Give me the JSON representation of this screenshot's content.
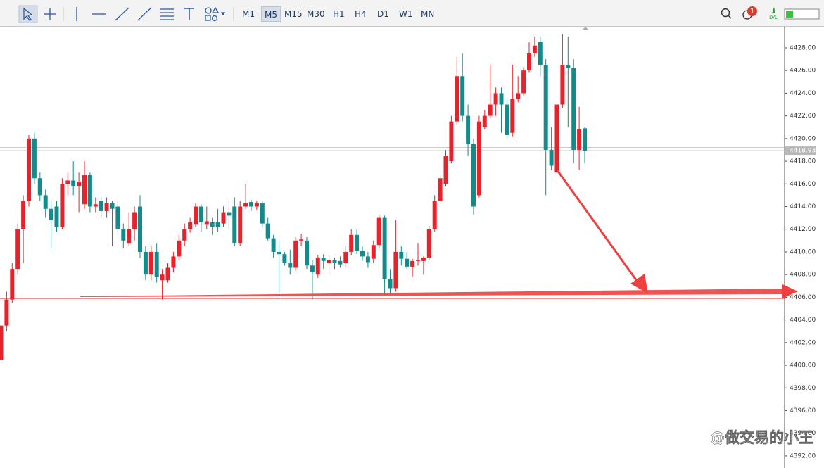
{
  "toolbar": {
    "timeframes": [
      "M1",
      "M5",
      "M15",
      "M30",
      "H1",
      "H4",
      "D1",
      "W1",
      "MN"
    ],
    "active_timeframe": "M5",
    "notification_count": "1",
    "level_label": "LVL"
  },
  "watermark": "@做交易的小王",
  "chart_data": {
    "type": "candlestick",
    "up_color": "#e8222b",
    "down_color": "#138b8b",
    "ylim": [
      4390.94,
      4429.86
    ],
    "yticks": [
      {
        "value": 4392,
        "label": "4392.00"
      },
      {
        "value": 4394,
        "label": "4394.00"
      },
      {
        "value": 4396,
        "label": "4396.00"
      },
      {
        "value": 4398,
        "label": "4398.00"
      },
      {
        "value": 4400,
        "label": "4400.00"
      },
      {
        "value": 4402,
        "label": "4402.00"
      },
      {
        "value": 4404,
        "label": "4404.00"
      },
      {
        "value": 4406,
        "label": "4406.00"
      },
      {
        "value": 4408,
        "label": "4408.00"
      },
      {
        "value": 4410,
        "label": "4410.00"
      },
      {
        "value": 4412,
        "label": "4412.00"
      },
      {
        "value": 4414,
        "label": "4414.00"
      },
      {
        "value": 4416,
        "label": "4416.00"
      },
      {
        "value": 4418,
        "label": "4418.00"
      },
      {
        "value": 4420,
        "label": "4420.00"
      },
      {
        "value": 4422,
        "label": "4422.00"
      },
      {
        "value": 4424,
        "label": "4424.00"
      },
      {
        "value": 4426,
        "label": "4426.00"
      },
      {
        "value": 4428,
        "label": "4428.00"
      }
    ],
    "last_price": {
      "value": 4418.93,
      "label": "4418.93"
    },
    "ask_price": 4419.2,
    "support_level": 4405.9,
    "ohlc": [
      [
        4400.5,
        4404,
        4400,
        4403.5
      ],
      [
        4403.5,
        4406.5,
        4403,
        4405.8
      ],
      [
        4405.8,
        4409,
        4405.5,
        4408.5
      ],
      [
        4408.5,
        4412.5,
        4408,
        4412
      ],
      [
        4412,
        4415,
        4409,
        4414.5
      ],
      [
        4414.5,
        4420.3,
        4414,
        4420
      ],
      [
        4420,
        4420.5,
        4416,
        4416.5
      ],
      [
        4416.5,
        4417,
        4414.5,
        4415
      ],
      [
        4415,
        4415.5,
        4413,
        4413.8
      ],
      [
        4413.8,
        4414.5,
        4410.3,
        4412.8
      ],
      [
        4414,
        4414.5,
        4411.8,
        4412.2
      ],
      [
        4412.2,
        4416.5,
        4412,
        4416
      ],
      [
        4416,
        4417,
        4415,
        4416.3
      ],
      [
        4416.3,
        4418,
        4415,
        4415.8
      ],
      [
        4415.8,
        4417,
        4413.5,
        4416.2
      ],
      [
        4414.2,
        4418,
        4413.8,
        4416.8
      ],
      [
        4416.8,
        4417,
        4413.5,
        4414
      ],
      [
        4414,
        4414.8,
        4413.5,
        4414.2
      ],
      [
        4414.5,
        4414.8,
        4413,
        4413.6
      ],
      [
        4413.6,
        4414.8,
        4413,
        4414.3
      ],
      [
        4414.3,
        4414.5,
        4410.5,
        4413.8
      ],
      [
        4414,
        4414.5,
        4411.5,
        4412
      ],
      [
        4412,
        4412.5,
        4410.3,
        4411
      ],
      [
        4410.8,
        4413.5,
        4410.5,
        4412
      ],
      [
        4412,
        4414,
        4411,
        4413.5
      ],
      [
        4414,
        4415,
        4409.5,
        4410
      ],
      [
        4410,
        4410.5,
        4407.5,
        4408
      ],
      [
        4408,
        4410.5,
        4407.5,
        4410
      ],
      [
        4410,
        4410.8,
        4407.3,
        4407.8
      ],
      [
        4407.5,
        4408.5,
        4405.8,
        4408
      ],
      [
        4407.5,
        4409,
        4407.3,
        4408.6
      ],
      [
        4408.6,
        4410,
        4408.2,
        4409.6
      ],
      [
        4409.6,
        4411.5,
        4409.3,
        4411
      ],
      [
        4411,
        4412.5,
        4410.5,
        4412
      ],
      [
        4412,
        4413,
        4411.7,
        4412.6
      ],
      [
        4412.4,
        4414.3,
        4412.2,
        4414
      ],
      [
        4414,
        4414.2,
        4411.8,
        4412.6
      ],
      [
        4412.4,
        4414,
        4412,
        4412.7
      ],
      [
        4412.6,
        4413,
        4411.5,
        4412.2
      ],
      [
        4412.6,
        4413.8,
        4411.8,
        4412.2
      ],
      [
        4412.5,
        4414,
        4412.2,
        4413.5
      ],
      [
        4413.5,
        4414.5,
        4412,
        4413.2
      ],
      [
        4414,
        4414.8,
        4410.5,
        4410.8
      ],
      [
        4410.8,
        4414.5,
        4410.5,
        4414
      ],
      [
        4414,
        4416,
        4413.8,
        4414.3
      ],
      [
        4414.4,
        4414.6,
        4413.6,
        4414
      ],
      [
        4414,
        4414.5,
        4413.7,
        4414.3
      ],
      [
        4414.3,
        4414.5,
        4412.2,
        4412.5
      ],
      [
        4412.5,
        4413,
        4411,
        4411.2
      ],
      [
        4411.2,
        4411.5,
        4409.5,
        4410
      ],
      [
        4410,
        4411,
        4405.8,
        4409.8
      ],
      [
        4409.8,
        4410,
        4408.8,
        4409
      ],
      [
        4409,
        4410.2,
        4408,
        4408.6
      ],
      [
        4408.6,
        4411.3,
        4408.3,
        4411
      ],
      [
        4411,
        4411.6,
        4410.5,
        4411.1
      ],
      [
        4411,
        4411.3,
        4408.5,
        4408.8
      ],
      [
        4408.8,
        4409.3,
        4405.8,
        4408.2
      ],
      [
        4408,
        4409.7,
        4407.7,
        4409.5
      ],
      [
        4409.5,
        4409.8,
        4408.5,
        4409.2
      ],
      [
        4409,
        4409.7,
        4408,
        4409.3
      ],
      [
        4409.3,
        4409.5,
        4408.5,
        4409
      ],
      [
        4409.2,
        4409.6,
        4408.6,
        4408.9
      ],
      [
        4409,
        4410.5,
        4408.7,
        4410
      ],
      [
        4410,
        4412,
        4409.7,
        4411.5
      ],
      [
        4411.5,
        4412,
        4409.8,
        4410.1
      ],
      [
        4410.1,
        4410.5,
        4409.2,
        4409.6
      ],
      [
        4409.6,
        4410,
        4408.6,
        4409.1
      ],
      [
        4409.4,
        4411,
        4409,
        4410.6
      ],
      [
        4410.6,
        4413.3,
        4410.3,
        4413
      ],
      [
        4413,
        4413.2,
        4406.2,
        4407.6
      ],
      [
        4407.6,
        4408.5,
        4406.3,
        4406.8
      ],
      [
        4406.8,
        4412.8,
        4406.5,
        4410
      ],
      [
        4410,
        4410.5,
        4408.8,
        4409.4
      ],
      [
        4409.4,
        4410,
        4408.5,
        4408.7
      ],
      [
        4408.7,
        4409.4,
        4407.8,
        4409.2
      ],
      [
        4409.2,
        4410.8,
        4408.8,
        4409.3
      ],
      [
        4409.2,
        4409.6,
        4408,
        4409.5
      ],
      [
        4409.5,
        4412.3,
        4409.3,
        4412
      ],
      [
        4412,
        4415,
        4411.8,
        4414.5
      ],
      [
        4414.5,
        4416.8,
        4414.2,
        4416.5
      ],
      [
        4416,
        4419,
        4415.8,
        4418.5
      ],
      [
        4418,
        4422,
        4417.8,
        4421.5
      ],
      [
        4421.5,
        4427.2,
        4421.2,
        4425.5
      ],
      [
        4425.5,
        4427.5,
        4421.5,
        4422
      ],
      [
        4422,
        4423,
        4418.5,
        4419.5
      ],
      [
        4419.5,
        4420,
        4413.3,
        4414
      ],
      [
        4415,
        4422,
        4414.8,
        4421.5
      ],
      [
        4421,
        4422.5,
        4420.8,
        4422
      ],
      [
        4422,
        4426.5,
        4421.8,
        4423
      ],
      [
        4423,
        4424.5,
        4422,
        4424
      ],
      [
        4424,
        4424.5,
        4420.5,
        4423
      ],
      [
        4423,
        4423.5,
        4420,
        4420.3
      ],
      [
        4420.5,
        4426.5,
        4420.2,
        4423.5
      ],
      [
        4423.5,
        4425.5,
        4423.2,
        4424
      ],
      [
        4424,
        4426.3,
        4423.8,
        4426
      ],
      [
        4426,
        4428.5,
        4425.8,
        4427.5
      ],
      [
        4427.5,
        4429,
        4427.2,
        4428.2
      ],
      [
        4428.5,
        4429,
        4425.5,
        4426.5
      ],
      [
        4426.5,
        4427,
        4415,
        4419
      ],
      [
        4419,
        4421,
        4417.2,
        4417.6
      ],
      [
        4417,
        4423.2,
        4416,
        4423
      ],
      [
        4423,
        4429.2,
        4422.7,
        4426.5
      ],
      [
        4426.5,
        4429,
        4421,
        4426.2
      ],
      [
        4426.2,
        4427,
        4417.8,
        4419
      ],
      [
        4419,
        4422.8,
        4417.2,
        4420.8
      ],
      [
        4420.9,
        4421,
        4417.8,
        4418.93
      ]
    ]
  }
}
